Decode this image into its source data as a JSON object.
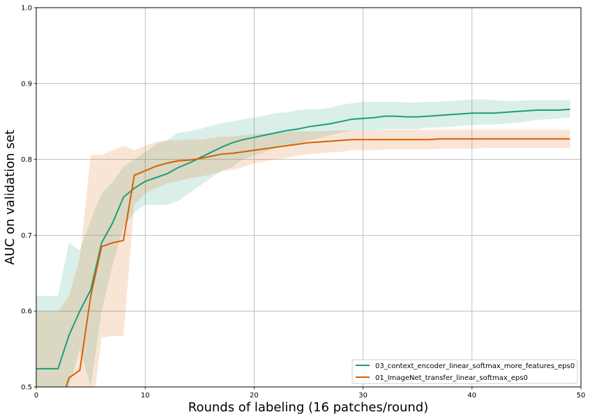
{
  "chart_data": {
    "type": "line",
    "xlabel": "Rounds of labeling (16 patches/round)",
    "ylabel": "AUC on validation set",
    "xlim": [
      0,
      50
    ],
    "ylim": [
      0.5,
      1.0
    ],
    "xticks": [
      0,
      10,
      20,
      30,
      40,
      50
    ],
    "xtick_labels": [
      "0",
      "10",
      "20",
      "30",
      "40",
      "50"
    ],
    "yticks": [
      0.5,
      0.6,
      0.7,
      0.8,
      0.9,
      1.0
    ],
    "ytick_labels": [
      "0.5",
      "0.6",
      "0.7",
      "0.8",
      "0.9",
      "1.0"
    ],
    "grid": true,
    "legend_position": "lower-right",
    "series": [
      {
        "name": "03_context_encoder_linear_softmax_more_features_eps0",
        "color": "#1b9e77",
        "x": [
          0,
          1,
          2,
          3,
          4,
          5,
          6,
          7,
          8,
          9,
          10,
          11,
          12,
          13,
          14,
          15,
          16,
          17,
          18,
          19,
          20,
          21,
          22,
          23,
          24,
          25,
          26,
          27,
          28,
          29,
          30,
          31,
          32,
          33,
          34,
          35,
          36,
          37,
          38,
          39,
          40,
          41,
          42,
          43,
          44,
          45,
          46,
          47,
          48,
          49
        ],
        "y": [
          0.524,
          0.524,
          0.524,
          0.568,
          0.6,
          0.628,
          0.69,
          0.716,
          0.75,
          0.762,
          0.771,
          0.776,
          0.781,
          0.789,
          0.795,
          0.802,
          0.809,
          0.816,
          0.822,
          0.826,
          0.829,
          0.832,
          0.835,
          0.838,
          0.84,
          0.843,
          0.845,
          0.847,
          0.85,
          0.853,
          0.854,
          0.855,
          0.857,
          0.857,
          0.856,
          0.856,
          0.857,
          0.858,
          0.859,
          0.86,
          0.861,
          0.861,
          0.861,
          0.862,
          0.863,
          0.864,
          0.865,
          0.865,
          0.865,
          0.866
        ],
        "lower": [
          0.5,
          0.5,
          0.5,
          0.5,
          0.55,
          0.5,
          0.6,
          0.66,
          0.71,
          0.73,
          0.74,
          0.74,
          0.74,
          0.745,
          0.755,
          0.765,
          0.775,
          0.785,
          0.79,
          0.8,
          0.805,
          0.81,
          0.815,
          0.818,
          0.82,
          0.825,
          0.828,
          0.832,
          0.835,
          0.838,
          0.838,
          0.838,
          0.84,
          0.84,
          0.84,
          0.84,
          0.842,
          0.842,
          0.843,
          0.844,
          0.845,
          0.846,
          0.846,
          0.847,
          0.848,
          0.85,
          0.852,
          0.853,
          0.854,
          0.855
        ],
        "upper": [
          0.62,
          0.62,
          0.62,
          0.69,
          0.68,
          0.72,
          0.755,
          0.77,
          0.79,
          0.8,
          0.81,
          0.82,
          0.825,
          0.835,
          0.837,
          0.84,
          0.844,
          0.848,
          0.85,
          0.853,
          0.855,
          0.858,
          0.861,
          0.862,
          0.865,
          0.866,
          0.866,
          0.868,
          0.872,
          0.874,
          0.876,
          0.876,
          0.876,
          0.876,
          0.875,
          0.875,
          0.876,
          0.876,
          0.877,
          0.878,
          0.879,
          0.879,
          0.878,
          0.877,
          0.877,
          0.878,
          0.878,
          0.878,
          0.878,
          0.878
        ]
      },
      {
        "name": "01_ImageNet_transfer_linear_softmax_eps0",
        "color": "#d95f02",
        "x": [
          0,
          1,
          2,
          3,
          4,
          5,
          6,
          7,
          8,
          9,
          10,
          11,
          12,
          13,
          14,
          15,
          16,
          17,
          18,
          19,
          20,
          21,
          22,
          23,
          24,
          25,
          26,
          27,
          28,
          29,
          30,
          31,
          32,
          33,
          34,
          35,
          36,
          37,
          38,
          39,
          40,
          41,
          42,
          43,
          44,
          45,
          46,
          47,
          48,
          49
        ],
        "y": [
          0.466,
          0.466,
          0.466,
          0.512,
          0.522,
          0.62,
          0.685,
          0.69,
          0.693,
          0.779,
          0.785,
          0.791,
          0.795,
          0.798,
          0.799,
          0.801,
          0.804,
          0.807,
          0.808,
          0.81,
          0.812,
          0.814,
          0.816,
          0.818,
          0.82,
          0.822,
          0.823,
          0.824,
          0.825,
          0.826,
          0.826,
          0.826,
          0.826,
          0.826,
          0.826,
          0.826,
          0.826,
          0.827,
          0.827,
          0.827,
          0.827,
          0.827,
          0.827,
          0.827,
          0.827,
          0.827,
          0.827,
          0.827,
          0.827,
          0.827
        ],
        "lower": [
          0.45,
          0.45,
          0.45,
          0.45,
          0.45,
          0.45,
          0.565,
          0.567,
          0.567,
          0.74,
          0.755,
          0.762,
          0.768,
          0.771,
          0.775,
          0.777,
          0.78,
          0.784,
          0.786,
          0.79,
          0.795,
          0.797,
          0.8,
          0.802,
          0.805,
          0.807,
          0.808,
          0.809,
          0.81,
          0.812,
          0.812,
          0.812,
          0.813,
          0.813,
          0.813,
          0.813,
          0.813,
          0.814,
          0.814,
          0.814,
          0.814,
          0.815,
          0.815,
          0.815,
          0.815,
          0.815,
          0.815,
          0.815,
          0.815,
          0.815
        ],
        "upper": [
          0.6,
          0.6,
          0.6,
          0.62,
          0.67,
          0.806,
          0.806,
          0.812,
          0.818,
          0.812,
          0.818,
          0.823,
          0.825,
          0.825,
          0.826,
          0.826,
          0.828,
          0.83,
          0.83,
          0.832,
          0.833,
          0.834,
          0.835,
          0.836,
          0.837,
          0.837,
          0.837,
          0.838,
          0.838,
          0.838,
          0.838,
          0.838,
          0.839,
          0.839,
          0.839,
          0.839,
          0.839,
          0.839,
          0.839,
          0.839,
          0.839,
          0.839,
          0.839,
          0.839,
          0.839,
          0.839,
          0.839,
          0.839,
          0.839,
          0.839
        ]
      }
    ]
  }
}
